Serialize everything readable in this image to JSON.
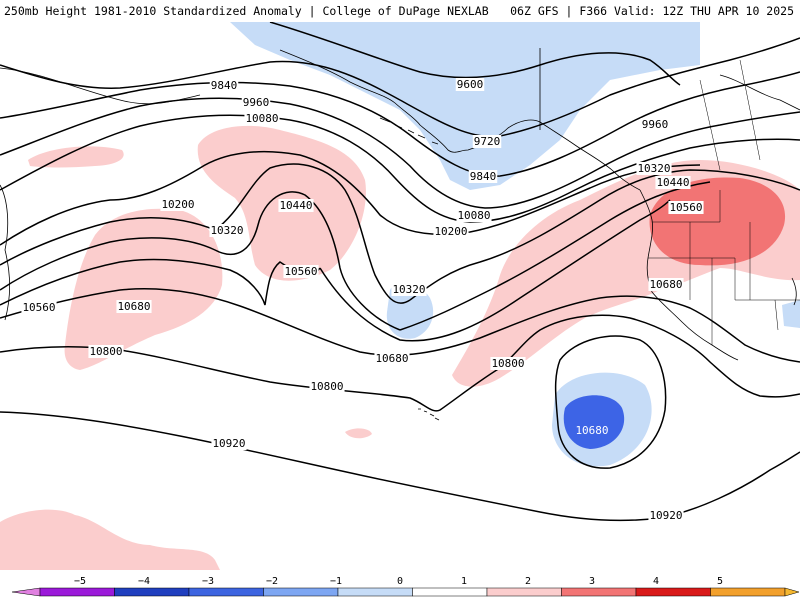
{
  "header": {
    "left_title": "250mb Height 1981-2010 Standardized Anomaly | College of DuPage NEXLAB",
    "right_title": "06Z GFS | F366 Valid: 12Z THU APR 10 2025"
  },
  "contour_labels": [
    "9600",
    "9720",
    "9840",
    "9960",
    "10080",
    "10200",
    "10320",
    "10440",
    "10560",
    "10680",
    "10800",
    "10920"
  ],
  "labels": {
    "l9600": "9600",
    "l9720": "9720",
    "l9840a": "9840",
    "l9840b": "9840",
    "l9960a": "9960",
    "l9960b": "9960",
    "l10080a": "10080",
    "l10080b": "10080",
    "l10200a": "10200",
    "l10200b": "10200",
    "l10320a": "10320",
    "l10320b": "10320",
    "l10320c": "10320",
    "l10440a": "10440",
    "l10440b": "10440",
    "l10560a": "10560",
    "l10560b": "10560",
    "l10560c": "10560",
    "l10680a": "10680",
    "l10680b": "10680",
    "l10680c": "10680",
    "l10680d": "10680",
    "l10800a": "10800",
    "l10800b": "10800",
    "l10800c": "10800",
    "l10920a": "10920",
    "l10920b": "10920"
  },
  "legend": {
    "ticks": [
      "−5",
      "−4",
      "−3",
      "−2",
      "−1",
      "0",
      "1",
      "2",
      "3",
      "4",
      "5"
    ],
    "colors": [
      "#9b19d9",
      "#1f3fbf",
      "#3c64e0",
      "#7da6f2",
      "#c6dcf7",
      "#ffffff",
      "#ffffff",
      "#fbcdcd",
      "#f27474",
      "#d91a1a",
      "#f2a02c"
    ],
    "end_left_color": "#e080e0",
    "end_right_color": "#f5b730"
  },
  "colors": {
    "anom_neg1": "#c6dcf7",
    "anom_neg2": "#3d64e6",
    "anom_pos1": "#fbcdcd",
    "anom_pos2": "#f27474",
    "contour": "#000000",
    "coast": "#000000"
  }
}
